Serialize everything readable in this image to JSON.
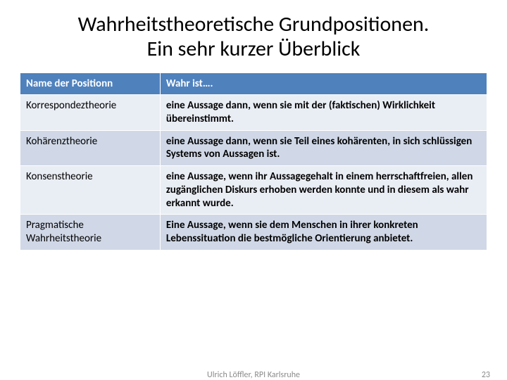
{
  "title_line1": "Wahrheitstheoretische Grundpositionen.",
  "title_line2": "Ein sehr kurzer Überblick",
  "table": {
    "header_bg": "#4f81bd",
    "header_fg": "#ffffff",
    "border_color": "#ffffff",
    "col0_label": "Name der Positionn",
    "col1_label": "Wahr ist….",
    "rows": [
      {
        "name": "Korrespondeztheorie",
        "desc": "eine Aussage dann, wenn sie mit der (faktischen) Wirklichkeit übereinstimmt."
      },
      {
        "name": "Kohärenztheorie",
        "desc": "eine Aussage dann, wenn sie Teil eines kohärenten, in sich schlüssigen Systems von Aussagen ist."
      },
      {
        "name": "Konsenstheorie",
        "desc": "eine Aussage, wenn ihr Aussagegehalt in einem herrschaftfreien, allen zugänglichen Diskurs erhoben werden konnte und in diesem als wahr erkannt wurde."
      },
      {
        "name": "Pragmatische Wahrheitstheorie",
        "desc": "Eine Aussage, wenn sie dem Menschen in ihrer konkreten Lebenssituation die bestmögliche Orientierung anbietet."
      }
    ],
    "row_colors": [
      "#e9edf4",
      "#d0d8e7"
    ]
  },
  "footer": {
    "credit": "Ulrich Löffler, RPI Karlsruhe",
    "page_number": "23"
  }
}
